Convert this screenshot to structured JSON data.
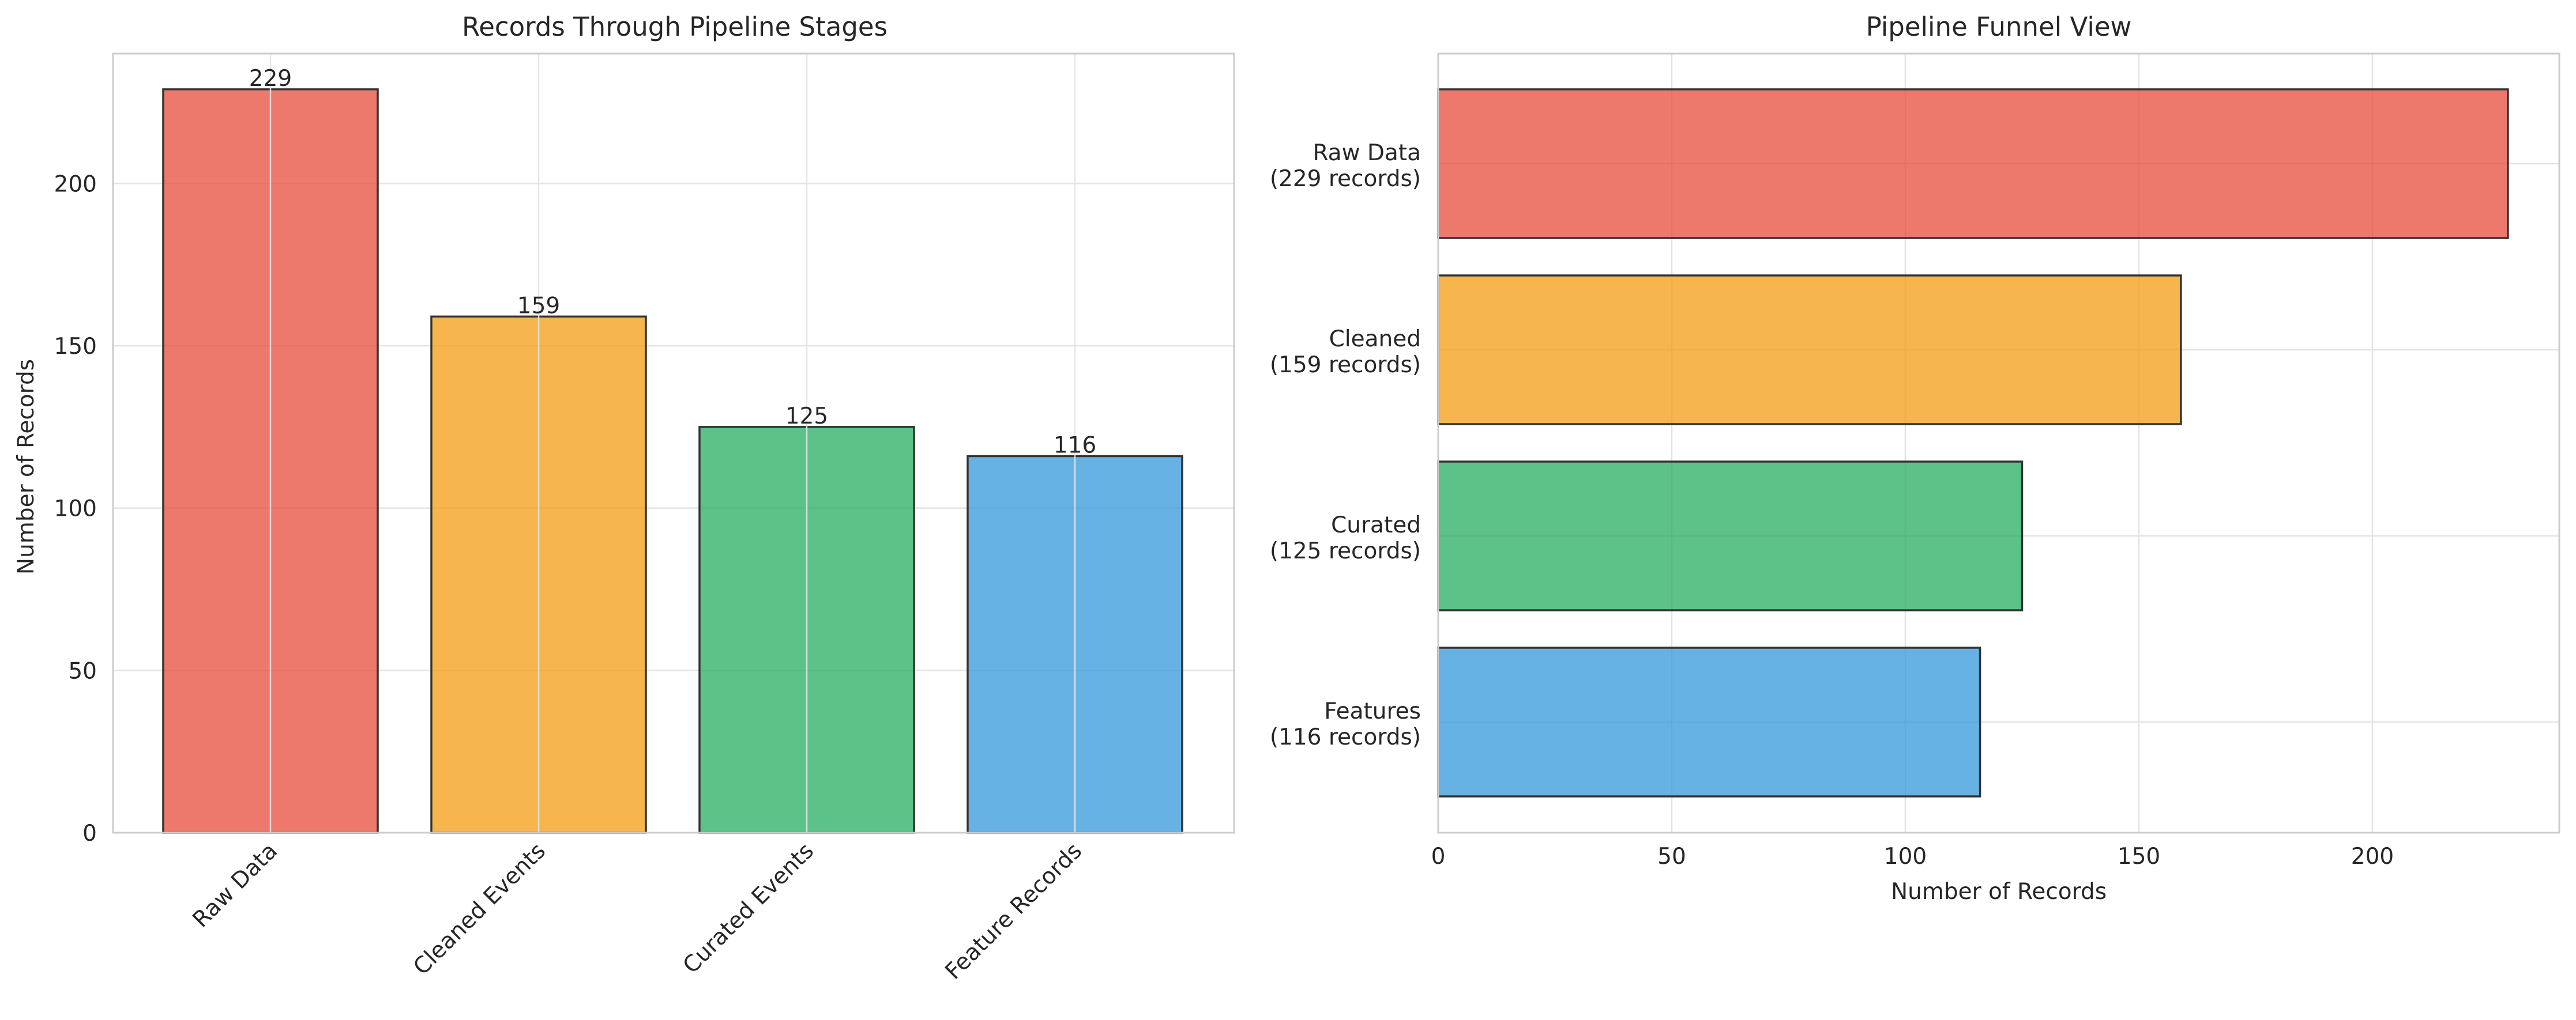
{
  "chart_data": [
    {
      "type": "bar",
      "orientation": "vertical",
      "title": "Records Through Pipeline Stages",
      "xlabel": "",
      "ylabel": "Number of Records",
      "categories": [
        "Raw Data",
        "Cleaned Events",
        "Curated Events",
        "Feature Records"
      ],
      "values": [
        229,
        159,
        125,
        116
      ],
      "colors": [
        "#e74c3c",
        "#f39c12",
        "#27ae60",
        "#3498db"
      ],
      "ylim": [
        0,
        240
      ],
      "yticks": [
        0,
        50,
        100,
        150,
        200
      ],
      "grid": true,
      "legend": "none"
    },
    {
      "type": "bar",
      "orientation": "horizontal",
      "title": "Pipeline Funnel View",
      "xlabel": "Number of Records",
      "ylabel": "",
      "categories": [
        [
          "Raw Data",
          "(229 records)"
        ],
        [
          "Cleaned",
          "(159 records)"
        ],
        [
          "Curated",
          "(125 records)"
        ],
        [
          "Features",
          "(116 records)"
        ]
      ],
      "values": [
        229,
        159,
        125,
        116
      ],
      "colors": [
        "#e74c3c",
        "#f39c12",
        "#27ae60",
        "#3498db"
      ],
      "xlim": [
        0,
        240
      ],
      "xticks": [
        0,
        50,
        100,
        150,
        200
      ],
      "grid": true,
      "legend": "none"
    }
  ]
}
